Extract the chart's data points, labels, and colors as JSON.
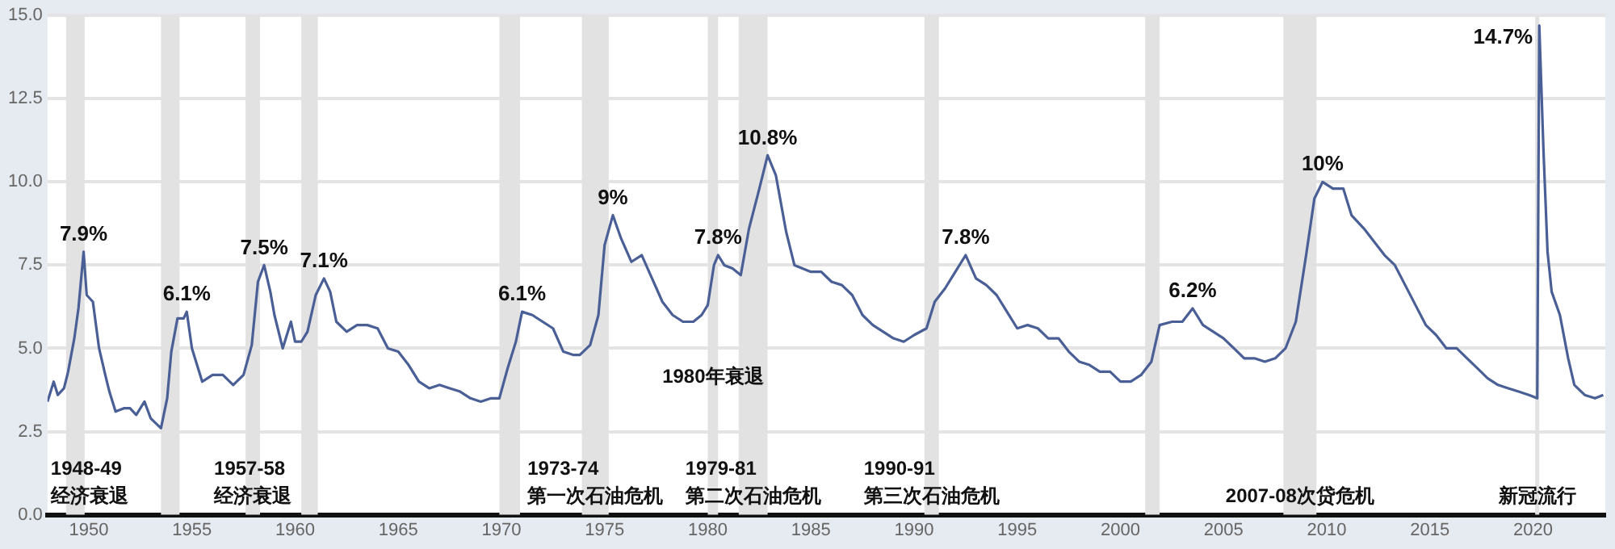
{
  "chart_data": {
    "type": "line",
    "color": "#4a5f96",
    "grid": "y",
    "legend": false,
    "marker": "none",
    "line_style": "solid",
    "xlim": [
      1948,
      2023.5
    ],
    "xticks": [
      1950,
      1955,
      1960,
      1965,
      1970,
      1975,
      1980,
      1985,
      1990,
      1995,
      2000,
      2005,
      2010,
      2015,
      2020
    ],
    "ylim": [
      0,
      15
    ],
    "yticks": [
      {
        "value": 0,
        "label": "0.0"
      },
      2.5,
      {
        "value": 5,
        "label": "5.0"
      },
      7.5,
      {
        "value": 10,
        "label": "10.0"
      },
      12.5,
      {
        "value": 15,
        "label": "15.0"
      }
    ],
    "x": [
      1948.0,
      1948.3,
      1948.5,
      1948.8,
      1949.0,
      1949.3,
      1949.5,
      1949.75,
      1949.9,
      1950.2,
      1950.5,
      1950.8,
      1951.0,
      1951.3,
      1951.7,
      1952.0,
      1952.3,
      1952.7,
      1953.0,
      1953.5,
      1953.8,
      1954.0,
      1954.3,
      1954.6,
      1954.75,
      1955.0,
      1955.5,
      1956.0,
      1956.5,
      1957.0,
      1957.5,
      1957.9,
      1958.2,
      1958.5,
      1958.8,
      1959.0,
      1959.4,
      1959.8,
      1960.0,
      1960.3,
      1960.6,
      1961.0,
      1961.4,
      1961.7,
      1962.0,
      1962.5,
      1963.0,
      1963.5,
      1964.0,
      1964.5,
      1965.0,
      1965.5,
      1966.0,
      1966.5,
      1967.0,
      1967.5,
      1968.0,
      1968.5,
      1969.0,
      1969.5,
      1969.9,
      1970.3,
      1970.7,
      1971.0,
      1971.5,
      1972.0,
      1972.5,
      1973.0,
      1973.5,
      1973.8,
      1974.3,
      1974.7,
      1975.0,
      1975.4,
      1975.8,
      1976.3,
      1976.8,
      1977.3,
      1977.8,
      1978.3,
      1978.8,
      1979.3,
      1979.7,
      1980.0,
      1980.3,
      1980.5,
      1980.8,
      1981.2,
      1981.6,
      1982.0,
      1982.5,
      1982.9,
      1983.3,
      1983.8,
      1984.2,
      1985.0,
      1985.5,
      1986.0,
      1986.5,
      1987.0,
      1987.5,
      1988.0,
      1988.5,
      1989.0,
      1989.5,
      1990.0,
      1990.6,
      1991.0,
      1991.5,
      1992.0,
      1992.5,
      1993.0,
      1993.5,
      1994.0,
      1994.5,
      1995.0,
      1995.5,
      1996.0,
      1996.5,
      1997.0,
      1997.5,
      1998.0,
      1998.5,
      1999.0,
      1999.5,
      2000.0,
      2000.5,
      2001.0,
      2001.5,
      2001.9,
      2002.5,
      2003.0,
      2003.5,
      2004.0,
      2004.5,
      2005.0,
      2005.5,
      2006.0,
      2006.5,
      2007.0,
      2007.5,
      2008.0,
      2008.5,
      2009.0,
      2009.4,
      2009.8,
      2010.3,
      2010.8,
      2011.2,
      2011.8,
      2012.3,
      2012.8,
      2013.3,
      2013.8,
      2014.3,
      2014.8,
      2015.3,
      2015.8,
      2016.3,
      2016.8,
      2017.3,
      2017.8,
      2018.3,
      2018.8,
      2019.3,
      2019.8,
      2020.2,
      2020.3,
      2020.5,
      2020.7,
      2020.9,
      2021.3,
      2021.7,
      2022.0,
      2022.5,
      2023.0,
      2023.4
    ],
    "values": [
      3.4,
      4.0,
      3.6,
      3.8,
      4.3,
      5.3,
      6.2,
      7.9,
      6.6,
      6.4,
      5.0,
      4.2,
      3.7,
      3.1,
      3.2,
      3.2,
      3.0,
      3.4,
      2.9,
      2.6,
      3.5,
      4.9,
      5.9,
      5.9,
      6.1,
      5.0,
      4.0,
      4.2,
      4.2,
      3.9,
      4.2,
      5.1,
      7.0,
      7.5,
      6.7,
      6.0,
      5.0,
      5.8,
      5.2,
      5.2,
      5.5,
      6.6,
      7.1,
      6.7,
      5.8,
      5.5,
      5.7,
      5.7,
      5.6,
      5.0,
      4.9,
      4.5,
      4.0,
      3.8,
      3.9,
      3.8,
      3.7,
      3.5,
      3.4,
      3.5,
      3.5,
      4.4,
      5.2,
      6.1,
      6.0,
      5.8,
      5.6,
      4.9,
      4.8,
      4.8,
      5.1,
      6.0,
      8.1,
      9.0,
      8.3,
      7.6,
      7.8,
      7.1,
      6.4,
      6.0,
      5.8,
      5.8,
      6.0,
      6.3,
      7.5,
      7.8,
      7.5,
      7.4,
      7.2,
      8.6,
      9.8,
      10.8,
      10.2,
      8.5,
      7.5,
      7.3,
      7.3,
      7.0,
      6.9,
      6.6,
      6.0,
      5.7,
      5.5,
      5.3,
      5.2,
      5.4,
      5.6,
      6.4,
      6.8,
      7.3,
      7.8,
      7.1,
      6.9,
      6.6,
      6.1,
      5.6,
      5.7,
      5.6,
      5.3,
      5.3,
      4.9,
      4.6,
      4.5,
      4.3,
      4.3,
      4.0,
      4.0,
      4.2,
      4.6,
      5.7,
      5.8,
      5.8,
      6.2,
      5.7,
      5.5,
      5.3,
      5.0,
      4.7,
      4.7,
      4.6,
      4.7,
      5.0,
      5.8,
      7.8,
      9.5,
      10.0,
      9.8,
      9.8,
      9.0,
      8.6,
      8.2,
      7.8,
      7.5,
      6.9,
      6.3,
      5.7,
      5.4,
      5.0,
      5.0,
      4.7,
      4.4,
      4.1,
      3.9,
      3.8,
      3.7,
      3.6,
      3.5,
      14.7,
      11.0,
      7.9,
      6.7,
      6.0,
      4.7,
      3.9,
      3.6,
      3.5,
      3.6
    ],
    "bands": [
      {
        "axis": "x",
        "from": 1948.9,
        "to": 1949.8,
        "color": "#e2e2e2",
        "label": "1948-49\n经济衰退"
      },
      {
        "axis": "x",
        "from": 1953.5,
        "to": 1954.4,
        "color": "#e2e2e2"
      },
      {
        "axis": "x",
        "from": 1957.6,
        "to": 1958.3,
        "color": "#e2e2e2",
        "label": "1957-58\n经济衰退"
      },
      {
        "axis": "x",
        "from": 1960.3,
        "to": 1961.1,
        "color": "#e2e2e2"
      },
      {
        "axis": "x",
        "from": 1969.9,
        "to": 1970.9,
        "color": "#e2e2e2"
      },
      {
        "axis": "x",
        "from": 1973.9,
        "to": 1975.2,
        "color": "#e2e2e2",
        "label": "1973-74\n第一次石油危机"
      },
      {
        "axis": "x",
        "from": 1980.0,
        "to": 1980.5,
        "color": "#e2e2e2",
        "label": "1980年衰退"
      },
      {
        "axis": "x",
        "from": 1981.5,
        "to": 1982.9,
        "color": "#e2e2e2",
        "label": "1979-81\n第二次石油危机"
      },
      {
        "axis": "x",
        "from": 1990.5,
        "to": 1991.2,
        "color": "#e2e2e2",
        "label": "1990-91\n第三次石油危机"
      },
      {
        "axis": "x",
        "from": 2001.2,
        "to": 2001.9,
        "color": "#e2e2e2"
      },
      {
        "axis": "x",
        "from": 2007.9,
        "to": 2009.5,
        "color": "#e2e2e2",
        "label": "2007-08次贷危机"
      },
      {
        "axis": "x",
        "from": 2020.1,
        "to": 2020.3,
        "color": "#e2e2e2",
        "label": "新冠流行"
      }
    ],
    "annotations": [
      {
        "text": "7.9%",
        "x": 1949.75,
        "y": 7.9
      },
      {
        "text": "6.1%",
        "x": 1954.75,
        "y": 6.1
      },
      {
        "text": "7.5%",
        "x": 1958.5,
        "y": 7.5
      },
      {
        "text": "7.1%",
        "x": 1961.4,
        "y": 7.1
      },
      {
        "text": "6.1%",
        "x": 1971.0,
        "y": 6.1
      },
      {
        "text": "9%",
        "x": 1975.4,
        "y": 9.0
      },
      {
        "text": "7.8%",
        "x": 1980.5,
        "y": 7.8
      },
      {
        "text": "10.8%",
        "x": 1982.9,
        "y": 10.8
      },
      {
        "text": "7.8%",
        "x": 1992.5,
        "y": 7.8
      },
      {
        "text": "6.2%",
        "x": 2003.5,
        "y": 6.2
      },
      {
        "text": "10%",
        "x": 2009.8,
        "y": 10.0
      },
      {
        "text": "14.7%",
        "x": 2020.3,
        "y": 14.7
      }
    ]
  }
}
